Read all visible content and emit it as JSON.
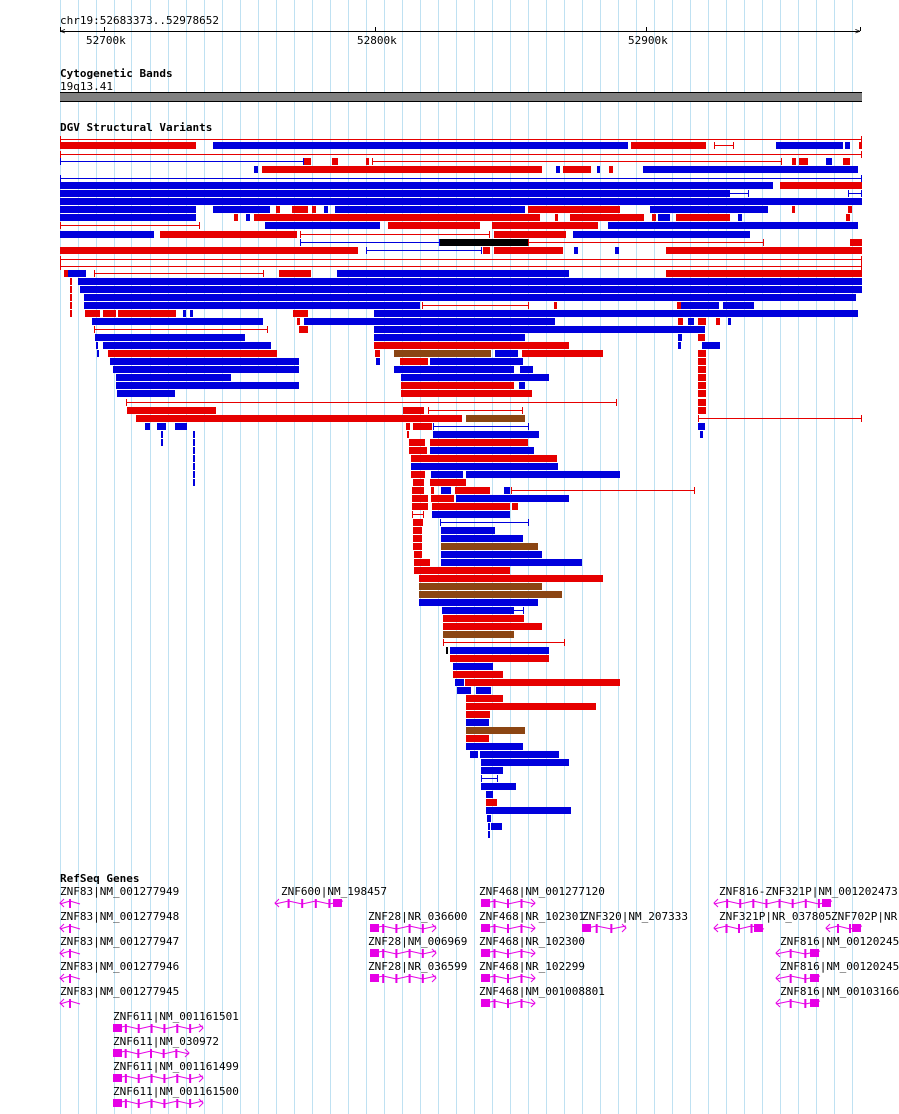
{
  "ruler": {
    "region": "chr19:52683373..52978652",
    "ticks": [
      "52700k",
      "52800k",
      "52900k"
    ]
  },
  "cytoband": {
    "title": "Cytogenetic Bands",
    "band_label": "19q13.41"
  },
  "dgv": {
    "title": "DGV Structural Variants",
    "legend_colors": {
      "gain": "#0000dc",
      "loss": "#e60000",
      "complex": "#8b4513",
      "other": "#000000"
    }
  },
  "refseq": {
    "title": "RefSeq Genes",
    "color": "#e600e6",
    "genes": [
      "ZNF83|NM_001277949",
      "ZNF83|NM_001277948",
      "ZNF83|NM_001277947",
      "ZNF83|NM_001277946",
      "ZNF83|NM_001277945",
      "ZNF611|NM_001161501",
      "ZNF611|NM_030972",
      "ZNF611|NM_001161499",
      "ZNF611|NM_001161500",
      "ZNF600|NM_198457",
      "ZNF28|NR_036600",
      "ZNF28|NM_006969",
      "ZNF28|NR_036599",
      "ZNF468|NM_001277120",
      "ZNF468|NR_102301",
      "ZNF468|NR_102300",
      "ZNF468|NR_102299",
      "ZNF468|NM_001008801",
      "ZNF320|NM_207333",
      "ZNF816-ZNF321P|NM_001202473",
      "ZNF321P|NR_037805",
      "ZNF702P|NR",
      "ZNF816|NM_00120245",
      "ZNF816|NM_00120245",
      "ZNF816|NM_00103166"
    ]
  }
}
